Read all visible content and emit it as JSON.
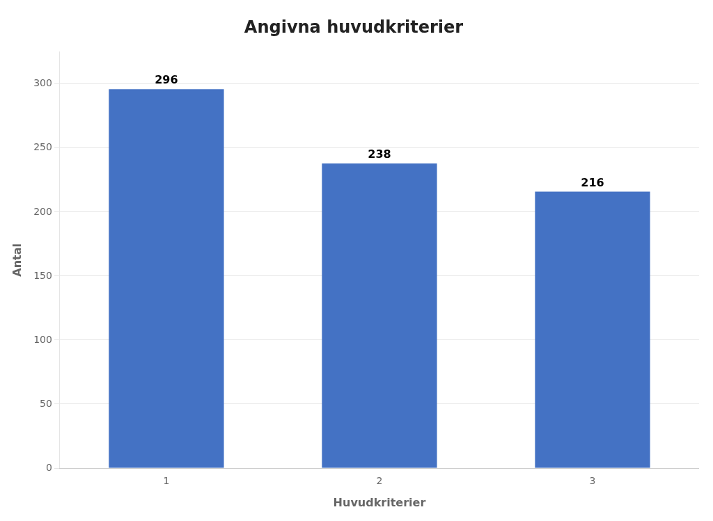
{
  "chart_data": {
    "type": "bar",
    "title": "Angivna huvudkriterier",
    "xlabel": "Huvudkriterier",
    "ylabel": "Antal",
    "categories": [
      "1",
      "2",
      "3"
    ],
    "values": [
      296,
      238,
      216
    ],
    "color": "#4472C4",
    "ylim": [
      0,
      325
    ],
    "yticks": [
      0,
      50,
      100,
      150,
      200,
      250,
      300
    ],
    "grid": true,
    "data_labels": true
  }
}
